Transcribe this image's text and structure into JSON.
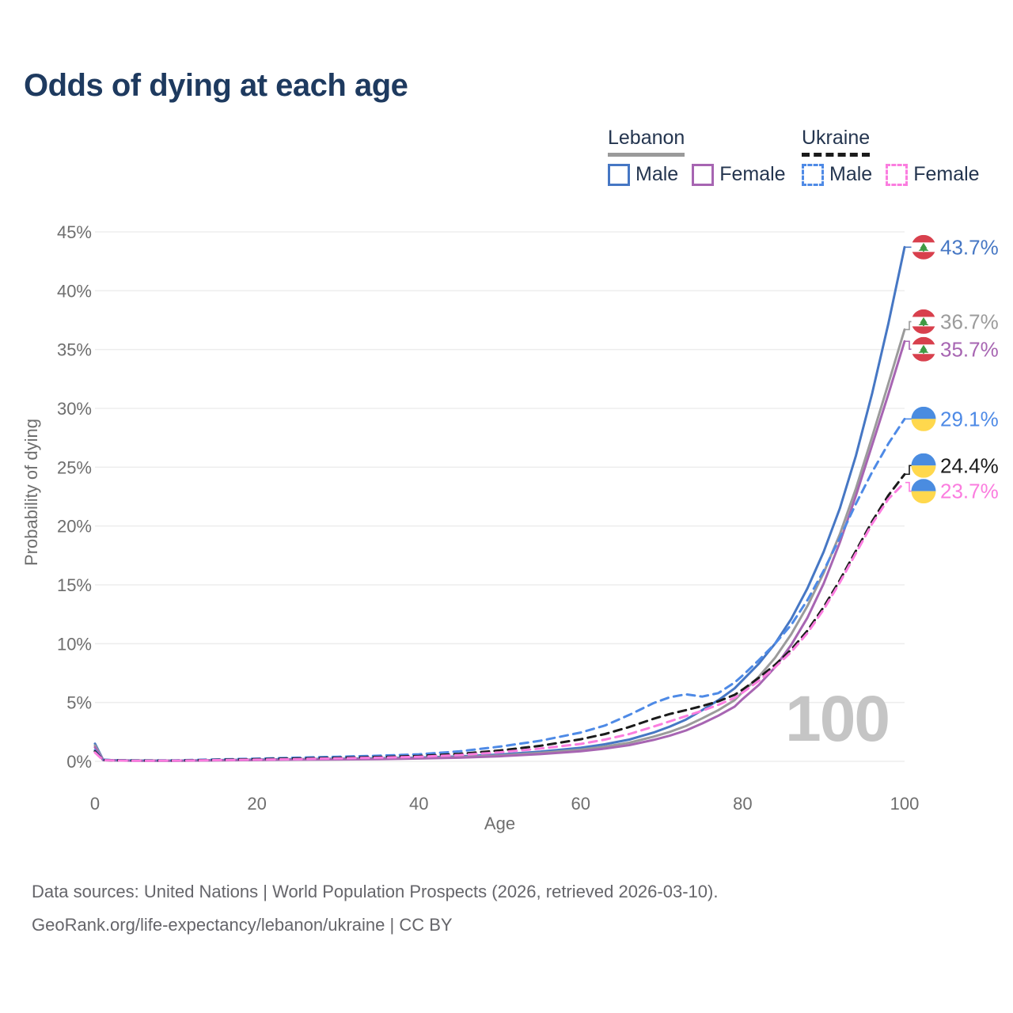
{
  "title": "Odds of dying at each age",
  "legend": {
    "groups": [
      {
        "name": "Lebanon",
        "line_style": "solid",
        "underline_color": "#9a9a9a",
        "items": [
          {
            "label": "Male",
            "series": "leb_male",
            "color": "#4677c4"
          },
          {
            "label": "Female",
            "series": "leb_female",
            "color": "#a765b2"
          }
        ]
      },
      {
        "name": "Ukraine",
        "line_style": "dashed",
        "underline_color": "#1b1b1b",
        "items": [
          {
            "label": "Male",
            "series": "ukr_male",
            "color": "#4e8ae6"
          },
          {
            "label": "Female",
            "series": "ukr_female",
            "color": "#fb7ddf"
          }
        ]
      }
    ]
  },
  "chart_data": {
    "type": "line",
    "title": "Odds of dying at each age",
    "xlabel": "Age",
    "ylabel": "Probability of dying",
    "xlim": [
      0,
      100
    ],
    "ylim": [
      0,
      45
    ],
    "xticks": [
      0,
      20,
      40,
      60,
      80,
      100
    ],
    "yticks": [
      0,
      5,
      10,
      15,
      20,
      25,
      30,
      35,
      40,
      45
    ],
    "ytick_suffix": "%",
    "grid": "horizontal",
    "legend_position": "top-right",
    "age_counter": "100",
    "x": [
      0,
      1,
      2,
      5,
      10,
      15,
      20,
      25,
      30,
      35,
      40,
      45,
      50,
      55,
      60,
      63,
      66,
      69,
      71,
      73,
      75,
      77,
      79,
      80,
      82,
      84,
      86,
      88,
      90,
      92,
      94,
      96,
      98,
      100
    ],
    "series": [
      {
        "id": "leb_male",
        "name": "Lebanon Male",
        "country": "Lebanon",
        "sex": "Male",
        "color": "#4677c4",
        "dashed": false,
        "flag": "lebanon",
        "end_label": "43.7%",
        "end_value": 43.7,
        "values": [
          1.5,
          0.15,
          0.1,
          0.07,
          0.06,
          0.1,
          0.15,
          0.18,
          0.22,
          0.26,
          0.32,
          0.42,
          0.58,
          0.82,
          1.15,
          1.45,
          1.85,
          2.45,
          2.95,
          3.55,
          4.35,
          5.2,
          6.2,
          6.9,
          8.3,
          10.0,
          12.1,
          14.7,
          17.8,
          21.5,
          26.0,
          31.3,
          37.2,
          43.7
        ]
      },
      {
        "id": "leb_total",
        "name": "Lebanon Both sexes",
        "country": "Lebanon",
        "sex": "Both",
        "color": "#9b9b9b",
        "dashed": false,
        "flag": "lebanon",
        "end_label": "36.7%",
        "end_value": 36.7,
        "values": [
          1.35,
          0.13,
          0.09,
          0.06,
          0.05,
          0.09,
          0.13,
          0.16,
          0.19,
          0.22,
          0.27,
          0.36,
          0.5,
          0.71,
          0.99,
          1.25,
          1.58,
          2.1,
          2.5,
          3.0,
          3.65,
          4.35,
          5.2,
          5.9,
          7.2,
          8.8,
          10.8,
          13.2,
          16.0,
          19.3,
          23.2,
          27.6,
          32.1,
          36.7
        ]
      },
      {
        "id": "leb_female",
        "name": "Lebanon Female",
        "country": "Lebanon",
        "sex": "Female",
        "color": "#a765b2",
        "dashed": false,
        "flag": "lebanon",
        "end_label": "35.7%",
        "end_value": 35.7,
        "values": [
          1.2,
          0.11,
          0.08,
          0.05,
          0.05,
          0.08,
          0.11,
          0.14,
          0.16,
          0.19,
          0.24,
          0.31,
          0.43,
          0.61,
          0.86,
          1.08,
          1.38,
          1.82,
          2.18,
          2.62,
          3.22,
          3.88,
          4.65,
          5.3,
          6.5,
          8.0,
          9.9,
          12.2,
          15.1,
          18.6,
          22.6,
          26.9,
          31.2,
          35.7
        ]
      },
      {
        "id": "ukr_male",
        "name": "Ukraine Male",
        "country": "Ukraine",
        "sex": "Male",
        "color": "#4e8ae6",
        "dashed": true,
        "flag": "ukraine",
        "end_label": "29.1%",
        "end_value": 29.1,
        "values": [
          0.95,
          0.13,
          0.1,
          0.08,
          0.09,
          0.16,
          0.23,
          0.31,
          0.39,
          0.48,
          0.6,
          0.85,
          1.25,
          1.75,
          2.45,
          3.05,
          3.95,
          4.95,
          5.45,
          5.7,
          5.5,
          5.8,
          6.7,
          7.3,
          8.6,
          10.0,
          11.6,
          13.7,
          16.2,
          19.0,
          21.9,
          24.6,
          27.0,
          29.1
        ]
      },
      {
        "id": "ukr_total",
        "name": "Ukraine Both sexes",
        "country": "Ukraine",
        "sex": "Both",
        "color": "#1b1b1b",
        "dashed": true,
        "flag": "ukraine",
        "end_label": "24.4%",
        "end_value": 24.4,
        "values": [
          0.85,
          0.11,
          0.09,
          0.07,
          0.07,
          0.13,
          0.18,
          0.24,
          0.3,
          0.37,
          0.46,
          0.63,
          0.92,
          1.32,
          1.88,
          2.32,
          2.92,
          3.62,
          4.02,
          4.35,
          4.7,
          5.1,
          5.65,
          6.1,
          7.1,
          8.2,
          9.5,
          11.1,
          13.1,
          15.4,
          17.9,
          20.4,
          22.6,
          24.4
        ]
      },
      {
        "id": "ukr_female",
        "name": "Ukraine Female",
        "country": "Ukraine",
        "sex": "Female",
        "color": "#fb7ddf",
        "dashed": true,
        "flag": "ukraine",
        "end_label": "23.7%",
        "end_value": 23.7,
        "values": [
          0.75,
          0.1,
          0.08,
          0.05,
          0.06,
          0.1,
          0.14,
          0.19,
          0.25,
          0.31,
          0.39,
          0.53,
          0.77,
          1.08,
          1.48,
          1.85,
          2.32,
          2.95,
          3.4,
          3.85,
          4.3,
          4.8,
          5.4,
          5.85,
          6.85,
          8.0,
          9.3,
          10.9,
          12.9,
          15.2,
          17.7,
          20.2,
          22.3,
          23.7
        ]
      }
    ],
    "flag_colors": {
      "lebanon_red": "#d8404d",
      "lebanon_cedar_green": "#3f9a44",
      "ukraine_blue": "#4a8ce0",
      "ukraine_yellow": "#ffd84d"
    }
  },
  "colors": {
    "title_text": "#1e3a5f",
    "legend_text": "#24354f",
    "axis_text": "#6e6e6e",
    "gridline": "#ededed",
    "watermark": "#c5c5c5",
    "footer_text": "#65656a"
  },
  "footer": {
    "line1": "Data sources: United Nations | World Population Prospects (2026, retrieved 2026-03-10).",
    "line2": "GeoRank.org/life-expectancy/lebanon/ukraine | CC BY"
  }
}
